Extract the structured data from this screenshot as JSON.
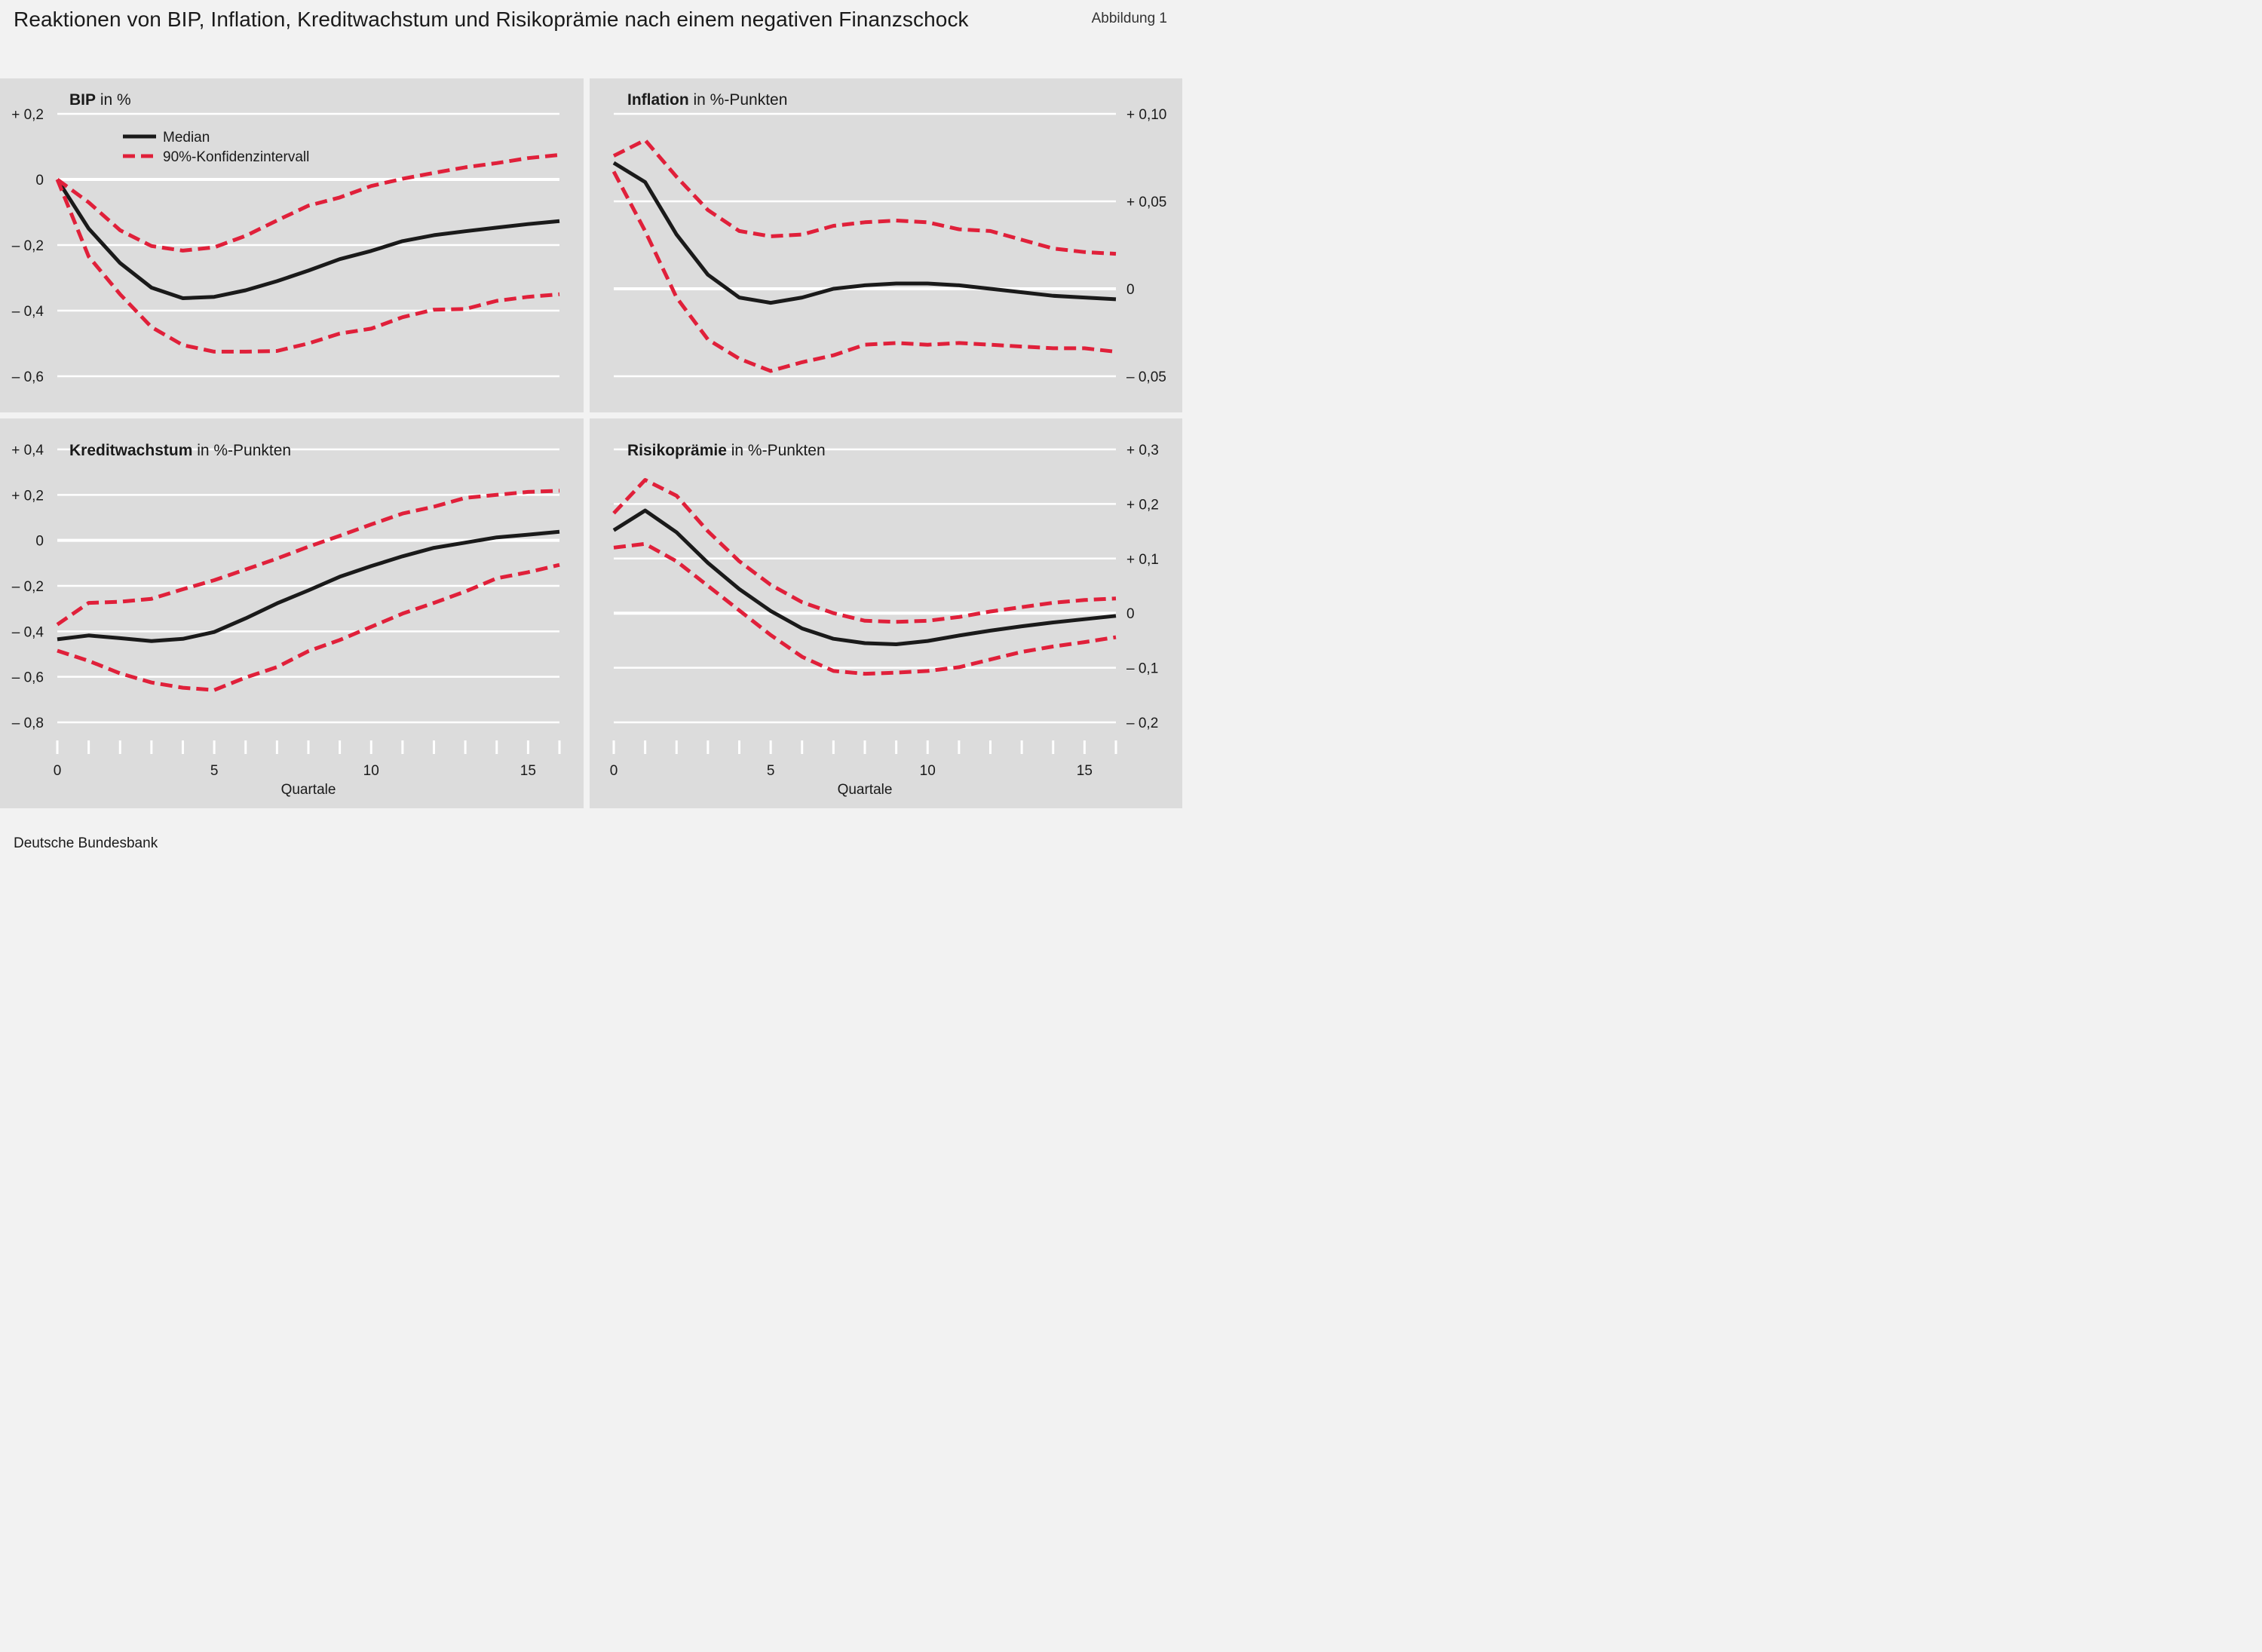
{
  "header": {
    "title": "Reaktionen von BIP, Inflation, Kreditwachstum und Risikoprämie nach einem negativen Finanzschock",
    "figure_no": "Abbildung 1"
  },
  "footer": {
    "source": "Deutsche Bundesbank"
  },
  "colors": {
    "median": "#1a1a1a",
    "ci": "#e0203a",
    "panel_bg": "#dcdcdc",
    "grid": "#ffffff"
  },
  "legend": {
    "median": "Median",
    "ci": "90%-Konfidenzintervall"
  },
  "chart_data": [
    {
      "type": "line",
      "title_bold": "BIP",
      "title_rest": " in %",
      "xlabel": "",
      "axis_side": "left",
      "ylim": [
        -0.6,
        0.2
      ],
      "yticks": [
        0.2,
        0,
        -0.2,
        -0.4,
        -0.6
      ],
      "ytick_labels": [
        "+ 0,2",
        "0",
        "– 0,2",
        "– 0,4",
        "– 0,6"
      ],
      "xlim": [
        0,
        16
      ],
      "x": [
        0,
        1,
        2,
        3,
        4,
        5,
        6,
        7,
        8,
        9,
        10,
        11,
        12,
        13,
        14,
        15,
        16
      ],
      "series": [
        {
          "name": "Median",
          "values": [
            0,
            -0.15,
            -0.255,
            -0.33,
            -0.362,
            -0.358,
            -0.338,
            -0.31,
            -0.278,
            -0.243,
            -0.218,
            -0.188,
            -0.17,
            -0.158,
            -0.147,
            -0.136,
            -0.127
          ]
        },
        {
          "name": "90%-Konfidenzintervall (oben)",
          "values": [
            0,
            -0.07,
            -0.155,
            -0.203,
            -0.217,
            -0.207,
            -0.172,
            -0.125,
            -0.08,
            -0.055,
            -0.02,
            0.002,
            0.02,
            0.037,
            0.05,
            0.065,
            0.075
          ]
        },
        {
          "name": "90%-Konfidenzintervall (unten)",
          "values": [
            0,
            -0.235,
            -0.35,
            -0.45,
            -0.505,
            -0.525,
            -0.525,
            -0.523,
            -0.5,
            -0.47,
            -0.455,
            -0.42,
            -0.397,
            -0.395,
            -0.37,
            -0.358,
            -0.35
          ]
        }
      ]
    },
    {
      "type": "line",
      "title_bold": "Inflation",
      "title_rest": " in %-Punkten",
      "xlabel": "",
      "axis_side": "right",
      "ylim": [
        -0.05,
        0.1
      ],
      "yticks": [
        0.1,
        0.05,
        0,
        -0.05
      ],
      "ytick_labels": [
        "+ 0,10",
        "+ 0,05",
        "0",
        "– 0,05"
      ],
      "xlim": [
        0,
        16
      ],
      "x": [
        0,
        1,
        2,
        3,
        4,
        5,
        6,
        7,
        8,
        9,
        10,
        11,
        12,
        13,
        14,
        15,
        16
      ],
      "series": [
        {
          "name": "Median",
          "values": [
            0.072,
            0.061,
            0.031,
            0.008,
            -0.005,
            -0.008,
            -0.005,
            0,
            0.002,
            0.003,
            0.003,
            0.002,
            0,
            -0.002,
            -0.004,
            -0.005,
            -0.006
          ]
        },
        {
          "name": "90%-Konfidenzintervall (oben)",
          "values": [
            0.076,
            0.085,
            0.064,
            0.045,
            0.033,
            0.03,
            0.031,
            0.036,
            0.038,
            0.039,
            0.038,
            0.034,
            0.033,
            0.028,
            0.023,
            0.021,
            0.02
          ]
        },
        {
          "name": "90%-Konfidenzintervall (unten)",
          "values": [
            0.067,
            0.033,
            -0.005,
            -0.029,
            -0.04,
            -0.047,
            -0.042,
            -0.038,
            -0.032,
            -0.031,
            -0.032,
            -0.031,
            -0.032,
            -0.033,
            -0.034,
            -0.034,
            -0.036
          ]
        }
      ]
    },
    {
      "type": "line",
      "title_bold": "Kreditwachstum",
      "title_rest": " in %-Punkten",
      "xlabel": "Quartale",
      "axis_side": "left",
      "ylim": [
        -0.8,
        0.4
      ],
      "yticks": [
        0.4,
        0.2,
        0,
        -0.2,
        -0.4,
        -0.6,
        -0.8
      ],
      "ytick_labels": [
        "+ 0,4",
        "+ 0,2",
        "0",
        "– 0,2",
        "– 0,4",
        "– 0,6",
        "– 0,8"
      ],
      "xlim": [
        0,
        16
      ],
      "xticks": [
        0,
        5,
        10,
        15
      ],
      "xtick_labels": [
        "0",
        "5",
        "10",
        "15"
      ],
      "x": [
        0,
        1,
        2,
        3,
        4,
        5,
        6,
        7,
        8,
        9,
        10,
        11,
        12,
        13,
        14,
        15,
        16
      ],
      "series": [
        {
          "name": "Median",
          "values": [
            -0.435,
            -0.418,
            -0.43,
            -0.443,
            -0.433,
            -0.403,
            -0.343,
            -0.277,
            -0.22,
            -0.16,
            -0.113,
            -0.07,
            -0.033,
            -0.01,
            0.013,
            0.025,
            0.038
          ]
        },
        {
          "name": "90%-Konfidenzintervall (oben)",
          "values": [
            -0.37,
            -0.275,
            -0.27,
            -0.257,
            -0.215,
            -0.175,
            -0.128,
            -0.08,
            -0.028,
            0.02,
            0.07,
            0.118,
            0.148,
            0.187,
            0.2,
            0.213,
            0.218
          ]
        },
        {
          "name": "90%-Konfidenzintervall (unten)",
          "values": [
            -0.485,
            -0.53,
            -0.585,
            -0.625,
            -0.648,
            -0.658,
            -0.603,
            -0.557,
            -0.487,
            -0.438,
            -0.38,
            -0.322,
            -0.275,
            -0.225,
            -0.167,
            -0.14,
            -0.108
          ]
        }
      ]
    },
    {
      "type": "line",
      "title_bold": "Risikoprämie",
      "title_rest": " in %-Punkten",
      "xlabel": "Quartale",
      "axis_side": "right",
      "ylim": [
        -0.2,
        0.3
      ],
      "yticks": [
        0.3,
        0.2,
        0.1,
        0,
        -0.1,
        -0.2
      ],
      "ytick_labels": [
        "+ 0,3",
        "+ 0,2",
        "+ 0,1",
        "0",
        "– 0,1",
        "– 0,2"
      ],
      "xlim": [
        0,
        16
      ],
      "xticks": [
        0,
        5,
        10,
        15
      ],
      "xtick_labels": [
        "0",
        "5",
        "10",
        "15"
      ],
      "x": [
        0,
        1,
        2,
        3,
        4,
        5,
        6,
        7,
        8,
        9,
        10,
        11,
        12,
        13,
        14,
        15,
        16
      ],
      "series": [
        {
          "name": "Median",
          "values": [
            0.152,
            0.188,
            0.148,
            0.092,
            0.044,
            0.004,
            -0.028,
            -0.047,
            -0.055,
            -0.057,
            -0.051,
            -0.041,
            -0.032,
            -0.024,
            -0.017,
            -0.011,
            -0.005
          ]
        },
        {
          "name": "90%-Konfidenzintervall (oben)",
          "values": [
            0.183,
            0.244,
            0.215,
            0.15,
            0.095,
            0.052,
            0.02,
            0,
            -0.014,
            -0.016,
            -0.014,
            -0.007,
            0.003,
            0.011,
            0.019,
            0.024,
            0.027
          ]
        },
        {
          "name": "90%-Konfidenzintervall (unten)",
          "values": [
            0.12,
            0.127,
            0.095,
            0.05,
            0.005,
            -0.04,
            -0.08,
            -0.106,
            -0.111,
            -0.109,
            -0.106,
            -0.099,
            -0.085,
            -0.071,
            -0.061,
            -0.053,
            -0.044
          ]
        }
      ]
    }
  ]
}
